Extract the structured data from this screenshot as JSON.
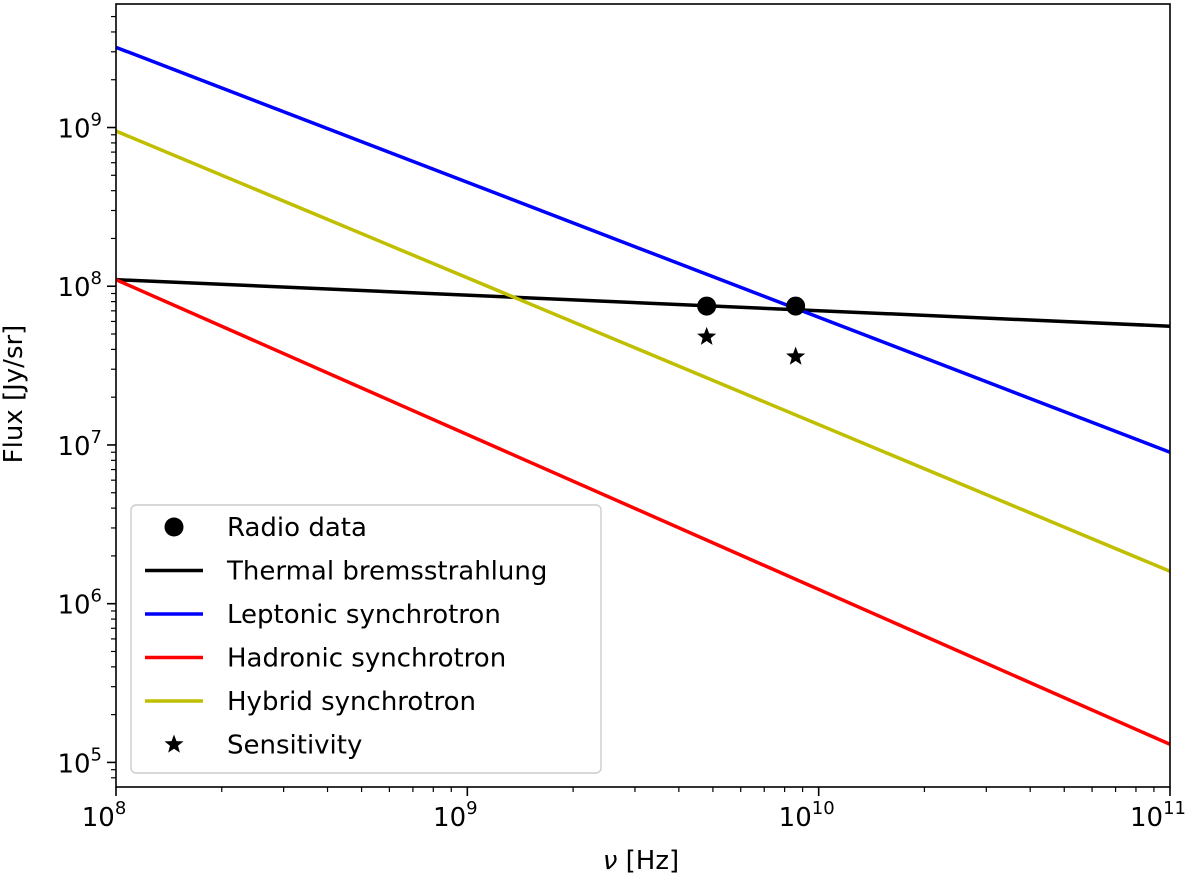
{
  "chart_data": {
    "type": "line",
    "title": "",
    "xlabel": "ν [Hz]",
    "xlabel_symbol": "ν",
    "xlabel_unit": "[Hz]",
    "ylabel": "Flux [Jy/sr]",
    "xscale": "log",
    "yscale": "log",
    "xlim": [
      100000000.0,
      100000000000.0
    ],
    "ylim": [
      70000.0,
      6000000000.0
    ],
    "x_ticks": [
      {
        "value": 100000000.0,
        "base": "10",
        "exp": "8"
      },
      {
        "value": 1000000000.0,
        "base": "10",
        "exp": "9"
      },
      {
        "value": 10000000000.0,
        "base": "10",
        "exp": "10"
      },
      {
        "value": 100000000000.0,
        "base": "10",
        "exp": "11"
      }
    ],
    "y_ticks": [
      {
        "value": 100000.0,
        "base": "10",
        "exp": "5"
      },
      {
        "value": 1000000.0,
        "base": "10",
        "exp": "6"
      },
      {
        "value": 10000000.0,
        "base": "10",
        "exp": "7"
      },
      {
        "value": 100000000.0,
        "base": "10",
        "exp": "8"
      },
      {
        "value": 1000000000.0,
        "base": "10",
        "exp": "9"
      }
    ],
    "series": [
      {
        "name": "Thermal bremsstrahlung",
        "kind": "line",
        "color": "#000000",
        "x": [
          100000000.0,
          100000000000.0
        ],
        "y": [
          110000000.0,
          56000000.0
        ]
      },
      {
        "name": "Leptonic synchrotron",
        "kind": "line",
        "color": "#0000ff",
        "x": [
          100000000.0,
          100000000000.0
        ],
        "y": [
          3200000000.0,
          9000000.0
        ]
      },
      {
        "name": "Hadronic synchrotron",
        "kind": "line",
        "color": "#ff0000",
        "x": [
          100000000.0,
          100000000000.0
        ],
        "y": [
          110000000.0,
          130000.0
        ]
      },
      {
        "name": "Hybrid synchrotron",
        "kind": "line",
        "color": "#bfbf00",
        "x": [
          100000000.0,
          100000000000.0
        ],
        "y": [
          950000000.0,
          1600000.0
        ]
      },
      {
        "name": "Radio data",
        "kind": "scatter",
        "marker": "circle",
        "color": "#000000",
        "x": [
          4800000000.0,
          8600000000.0
        ],
        "y": [
          75000000.0,
          75000000.0
        ]
      },
      {
        "name": "Sensitivity",
        "kind": "scatter",
        "marker": "star",
        "color": "#000000",
        "x": [
          4800000000.0,
          8600000000.0
        ],
        "y": [
          48000000.0,
          36000000.0
        ]
      }
    ],
    "legend": {
      "position": "lower-left",
      "entries": [
        {
          "label": "Radio data",
          "marker": "circle",
          "color": "#000000"
        },
        {
          "label": "Thermal bremsstrahlung",
          "marker": "line",
          "color": "#000000"
        },
        {
          "label": "Leptonic synchrotron",
          "marker": "line",
          "color": "#0000ff"
        },
        {
          "label": "Hadronic synchrotron",
          "marker": "line",
          "color": "#ff0000"
        },
        {
          "label": "Hybrid synchrotron",
          "marker": "line",
          "color": "#bfbf00"
        },
        {
          "label": "Sensitivity",
          "marker": "star",
          "color": "#000000"
        }
      ]
    }
  }
}
